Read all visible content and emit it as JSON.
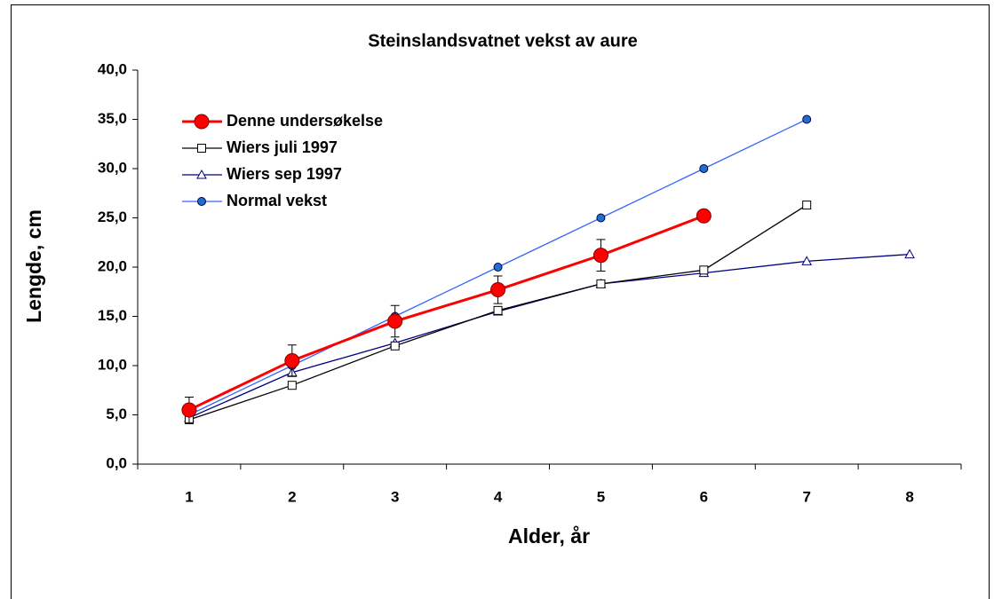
{
  "chart_data": {
    "type": "line",
    "title": "Steinslandsvatnet vekst av aure",
    "x_label": "Alder, år",
    "y_label": "Lengde, cm",
    "categories": [
      "1",
      "2",
      "3",
      "4",
      "5",
      "6",
      "7",
      "8"
    ],
    "ylim": [
      0,
      40
    ],
    "yticks": [
      {
        "value": 0,
        "label": "0,0"
      },
      {
        "value": 5,
        "label": "5,0"
      },
      {
        "value": 10,
        "label": "10,0"
      },
      {
        "value": 15,
        "label": "15,0"
      },
      {
        "value": 20,
        "label": "20,0"
      },
      {
        "value": 25,
        "label": "25,0"
      },
      {
        "value": 30,
        "label": "30,0"
      },
      {
        "value": 35,
        "label": "35,0"
      },
      {
        "value": 40,
        "label": "40,0"
      }
    ],
    "grid": false,
    "legend": "upper left",
    "series": [
      {
        "name": "Denne undersøkelse",
        "color": "#ff0000",
        "marker": "big-circle",
        "values": [
          5.5,
          10.5,
          14.5,
          17.7,
          21.2,
          25.2,
          null,
          null
        ],
        "errors": [
          1.3,
          1.6,
          1.6,
          1.4,
          1.6,
          null,
          null,
          null
        ]
      },
      {
        "name": "Wiers juli 1997",
        "color": "#000000",
        "marker": "square",
        "values": [
          4.5,
          8.0,
          12.0,
          15.6,
          18.3,
          19.7,
          26.3,
          null
        ]
      },
      {
        "name": "Wiers sep 1997",
        "color": "#000080",
        "marker": "triangle",
        "values": [
          4.7,
          9.3,
          12.3,
          15.5,
          18.3,
          19.4,
          20.6,
          21.3
        ]
      },
      {
        "name": "Normal vekst",
        "color": "#3366ff",
        "marker": "circle",
        "values": [
          5.0,
          10.0,
          15.0,
          20.0,
          25.0,
          30.0,
          35.0,
          null
        ]
      }
    ]
  }
}
